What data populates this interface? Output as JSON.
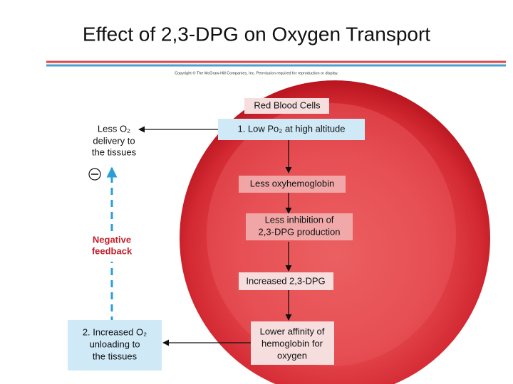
{
  "title": "Effect of 2,3-DPG on Oxygen Transport",
  "copyright": "Copyright © The McGraw-Hill Companies, Inc. Permission required for reproduction or display.",
  "nodes": [
    {
      "lines": [
        "Red Blood Cells"
      ]
    },
    {
      "lines": [
        "1. Low Po₂ at high altitude"
      ]
    },
    {
      "lines": [
        "Less oxyhemoglobin"
      ]
    },
    {
      "lines": [
        "Less inhibition of",
        "2,3-DPG production"
      ]
    },
    {
      "lines": [
        "Increased 2,3-DPG"
      ]
    },
    {
      "lines": [
        "Lower affinity of",
        "hemoglobin for",
        "oxygen"
      ]
    },
    {
      "lines": [
        "Less O₂",
        "delivery to",
        "the tissues"
      ]
    },
    {
      "lines": [
        "Negative",
        "feedback"
      ]
    },
    {
      "lines": [
        "2. Increased O₂",
        "unloading to",
        "the tissues"
      ]
    }
  ]
}
